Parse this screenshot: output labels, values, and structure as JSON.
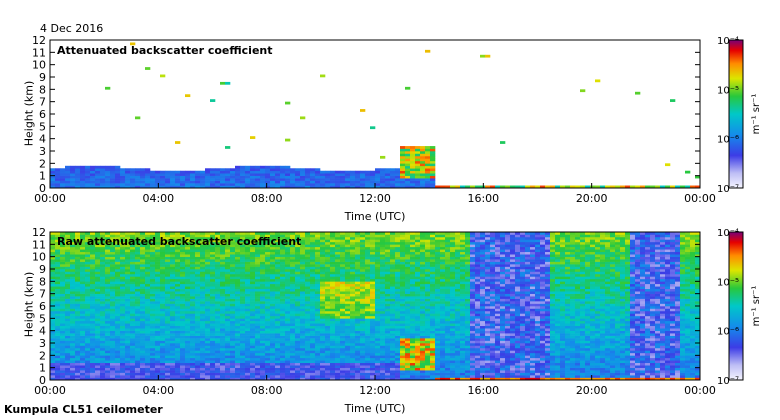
{
  "date": "4 Dec 2016",
  "footer": "Kumpula CL51 ceilometer",
  "colorbar": {
    "unit": "m⁻¹ sr⁻¹",
    "ticks": [
      "10⁻⁴",
      "10⁻⁵",
      "10⁻⁶",
      "10⁻⁷"
    ]
  },
  "chart_data": [
    {
      "type": "heatmap",
      "title": "Attenuated backscatter coefficient",
      "xlabel": "Time (UTC)",
      "ylabel": "Height (km)",
      "x_ticks": [
        "00:00",
        "04:00",
        "08:00",
        "12:00",
        "16:00",
        "20:00",
        "00:00"
      ],
      "y_ticks": [
        "0",
        "1",
        "2",
        "3",
        "4",
        "5",
        "6",
        "7",
        "8",
        "9",
        "10",
        "11",
        "12"
      ],
      "xlim_hours": [
        0,
        24
      ],
      "ylim_km": [
        0,
        12
      ],
      "color_scale": "log",
      "clim": [
        1e-07,
        0.0001
      ]
    },
    {
      "type": "heatmap",
      "title": "Raw attenuated backscatter coefficient",
      "xlabel": "Time (UTC)",
      "ylabel": "Height (km)",
      "x_ticks": [
        "00:00",
        "04:00",
        "08:00",
        "12:00",
        "16:00",
        "20:00",
        "00:00"
      ],
      "y_ticks": [
        "0",
        "1",
        "2",
        "3",
        "4",
        "5",
        "6",
        "7",
        "8",
        "9",
        "10",
        "11",
        "12"
      ],
      "xlim_hours": [
        0,
        24
      ],
      "ylim_km": [
        0,
        12
      ],
      "color_scale": "log",
      "clim": [
        1e-07,
        0.0001
      ]
    }
  ]
}
